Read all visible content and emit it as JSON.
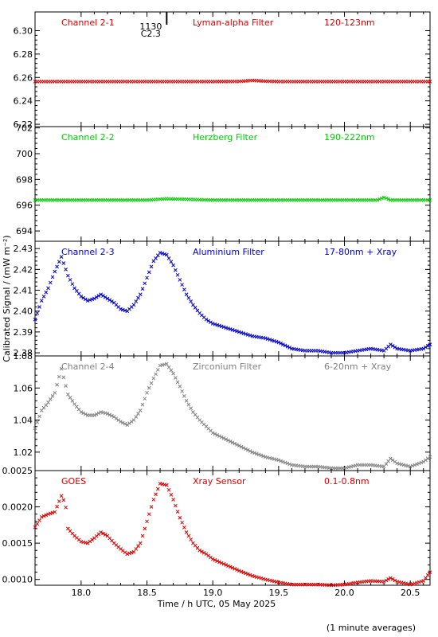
{
  "chart_data": {
    "type": "scatter",
    "xlabel": "Time / h UTC, 05 May 2025",
    "ylabel": "Calibrated Signal / (mW m⁻²)",
    "footnote": "(1 minute averages)",
    "xlim": [
      17.65,
      20.65
    ],
    "xticks": [
      18.0,
      18.5,
      19.0,
      19.5,
      20.0,
      20.5
    ],
    "xtick_labels": [
      "18.0",
      "18.5",
      "19.0",
      "19.5",
      "20.0",
      "20.5"
    ],
    "marker": {
      "label1": "1130",
      "label2": "C2.3",
      "x": 18.65
    },
    "panels": [
      {
        "channel": "Channel 2-1",
        "filter": "Lyman-alpha Filter",
        "band": "120-123nm",
        "color": "#dd0000",
        "ylim": [
          6.218,
          6.316
        ],
        "yticks": [
          6.22,
          6.24,
          6.26,
          6.28,
          6.3
        ],
        "ytick_labels": [
          "6.22",
          "6.24",
          "6.26",
          "6.28",
          "6.30"
        ],
        "x": [
          17.65,
          18.0,
          18.5,
          19.0,
          19.2,
          19.3,
          19.4,
          19.5,
          20.0,
          20.65
        ],
        "y": [
          6.2565,
          6.2565,
          6.2565,
          6.2565,
          6.2566,
          6.2575,
          6.2568,
          6.2565,
          6.2565,
          6.2565
        ]
      },
      {
        "channel": "Channel 2-2",
        "filter": "Herzberg Filter",
        "band": "190-222nm",
        "color": "#00cc00",
        "ylim": [
          693.2,
          702.1
        ],
        "yticks": [
          694,
          696,
          698,
          700,
          702
        ],
        "ytick_labels": [
          "694",
          "696",
          "698",
          "700",
          "702"
        ],
        "x": [
          17.65,
          18.0,
          18.5,
          18.65,
          19.0,
          19.5,
          20.0,
          20.25,
          20.3,
          20.35,
          20.65
        ],
        "y": [
          696.4,
          696.4,
          696.4,
          696.5,
          696.4,
          696.4,
          696.4,
          696.4,
          696.6,
          696.4,
          696.4
        ]
      },
      {
        "channel": "Channel 2-3",
        "filter": "Aluminium Filter",
        "band": "17-80nm + Xray",
        "color": "#0000cc",
        "ylim": [
          2.3785,
          2.4335
        ],
        "yticks": [
          2.38,
          2.39,
          2.4,
          2.41,
          2.42,
          2.43
        ],
        "ytick_labels": [
          "2.38",
          "2.39",
          "2.40",
          "2.41",
          "2.42",
          "2.43"
        ],
        "x": [
          17.65,
          17.7,
          17.75,
          17.8,
          17.85,
          17.9,
          17.95,
          18.0,
          18.05,
          18.1,
          18.15,
          18.2,
          18.25,
          18.3,
          18.35,
          18.4,
          18.45,
          18.5,
          18.55,
          18.6,
          18.65,
          18.7,
          18.75,
          18.8,
          18.85,
          18.9,
          18.95,
          19.0,
          19.1,
          19.2,
          19.3,
          19.4,
          19.5,
          19.6,
          19.7,
          19.8,
          19.9,
          20.0,
          20.1,
          20.2,
          20.3,
          20.35,
          20.4,
          20.5,
          20.6,
          20.65
        ],
        "y": [
          2.396,
          2.405,
          2.411,
          2.419,
          2.426,
          2.417,
          2.411,
          2.407,
          2.405,
          2.406,
          2.408,
          2.406,
          2.404,
          2.401,
          2.4,
          2.403,
          2.408,
          2.416,
          2.424,
          2.428,
          2.427,
          2.422,
          2.415,
          2.408,
          2.403,
          2.399,
          2.396,
          2.394,
          2.392,
          2.39,
          2.388,
          2.387,
          2.385,
          2.382,
          2.381,
          2.381,
          2.38,
          2.38,
          2.381,
          2.382,
          2.381,
          2.384,
          2.382,
          2.381,
          2.382,
          2.384
        ]
      },
      {
        "channel": "Channel 2-4",
        "filter": "Zirconium Filter",
        "band": "6-20nm + Xray",
        "color": "#808080",
        "ylim": [
          1.0085,
          1.08
        ],
        "yticks": [
          1.02,
          1.04,
          1.06,
          1.08
        ],
        "ytick_labels": [
          "1.02",
          "1.04",
          "1.06",
          "1.08"
        ],
        "x": [
          17.65,
          17.7,
          17.75,
          17.8,
          17.85,
          17.9,
          17.95,
          18.0,
          18.05,
          18.1,
          18.15,
          18.2,
          18.25,
          18.3,
          18.35,
          18.4,
          18.45,
          18.5,
          18.55,
          18.6,
          18.65,
          18.7,
          18.75,
          18.8,
          18.85,
          18.9,
          18.95,
          19.0,
          19.1,
          19.2,
          19.3,
          19.4,
          19.5,
          19.6,
          19.7,
          19.8,
          19.9,
          20.0,
          20.1,
          20.2,
          20.3,
          20.35,
          20.4,
          20.5,
          20.6,
          20.65
        ],
        "y": [
          1.035,
          1.046,
          1.051,
          1.057,
          1.072,
          1.056,
          1.05,
          1.045,
          1.043,
          1.043,
          1.045,
          1.044,
          1.042,
          1.039,
          1.037,
          1.04,
          1.046,
          1.057,
          1.066,
          1.074,
          1.075,
          1.069,
          1.061,
          1.052,
          1.045,
          1.04,
          1.036,
          1.032,
          1.028,
          1.024,
          1.02,
          1.017,
          1.015,
          1.012,
          1.011,
          1.011,
          1.01,
          1.01,
          1.012,
          1.012,
          1.011,
          1.016,
          1.013,
          1.011,
          1.014,
          1.017
        ]
      },
      {
        "channel": "GOES",
        "filter": "Xray Sensor",
        "band": "0.1-0.8nm",
        "color": "#dd0000",
        "ylim": [
          0.00092,
          0.0025
        ],
        "yticks": [
          0.001,
          0.0015,
          0.002,
          0.0025
        ],
        "ytick_labels": [
          "0.0010",
          "0.0015",
          "0.0020",
          "0.0025"
        ],
        "x": [
          17.65,
          17.7,
          17.75,
          17.8,
          17.85,
          17.88,
          17.9,
          17.95,
          18.0,
          18.05,
          18.1,
          18.15,
          18.2,
          18.25,
          18.3,
          18.35,
          18.4,
          18.45,
          18.5,
          18.55,
          18.6,
          18.65,
          18.7,
          18.75,
          18.8,
          18.85,
          18.9,
          18.95,
          19.0,
          19.1,
          19.2,
          19.3,
          19.4,
          19.5,
          19.6,
          19.7,
          19.8,
          19.9,
          20.0,
          20.1,
          20.2,
          20.3,
          20.35,
          20.4,
          20.5,
          20.6,
          20.65
        ],
        "y": [
          0.00172,
          0.00186,
          0.0019,
          0.00193,
          0.00215,
          0.00205,
          0.0017,
          0.0016,
          0.00152,
          0.0015,
          0.00157,
          0.00165,
          0.0016,
          0.0015,
          0.00142,
          0.00135,
          0.00138,
          0.0015,
          0.0018,
          0.0021,
          0.00232,
          0.0023,
          0.0021,
          0.00185,
          0.00165,
          0.0015,
          0.0014,
          0.00135,
          0.00128,
          0.0012,
          0.00112,
          0.00105,
          0.001,
          0.00096,
          0.00093,
          0.00093,
          0.00093,
          0.00092,
          0.00093,
          0.00096,
          0.00098,
          0.00097,
          0.00102,
          0.00097,
          0.00093,
          0.00098,
          0.0011
        ]
      }
    ]
  }
}
